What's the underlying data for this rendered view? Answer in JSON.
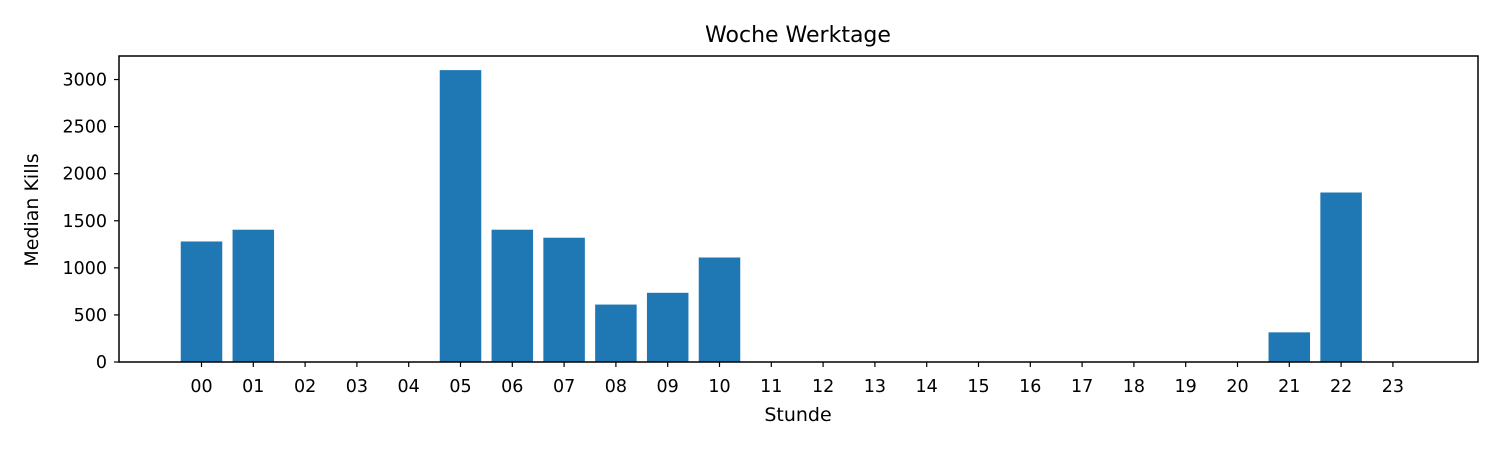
{
  "chart_data": {
    "type": "bar",
    "title": "Woche Werktage",
    "xlabel": "Stunde",
    "ylabel": "Median Kills",
    "categories": [
      "00",
      "01",
      "02",
      "03",
      "04",
      "05",
      "06",
      "07",
      "08",
      "09",
      "10",
      "11",
      "12",
      "13",
      "14",
      "15",
      "16",
      "17",
      "18",
      "19",
      "20",
      "21",
      "22",
      "23"
    ],
    "values": [
      1280,
      1405,
      0,
      0,
      0,
      3100,
      1405,
      1320,
      610,
      735,
      1110,
      0,
      0,
      0,
      0,
      0,
      0,
      0,
      0,
      0,
      0,
      315,
      1800,
      0
    ],
    "ylim": [
      0,
      3250
    ],
    "yticks": [
      0,
      500,
      1000,
      1500,
      2000,
      2500,
      3000
    ],
    "grid": false,
    "bar_color": "#1f77b4"
  }
}
